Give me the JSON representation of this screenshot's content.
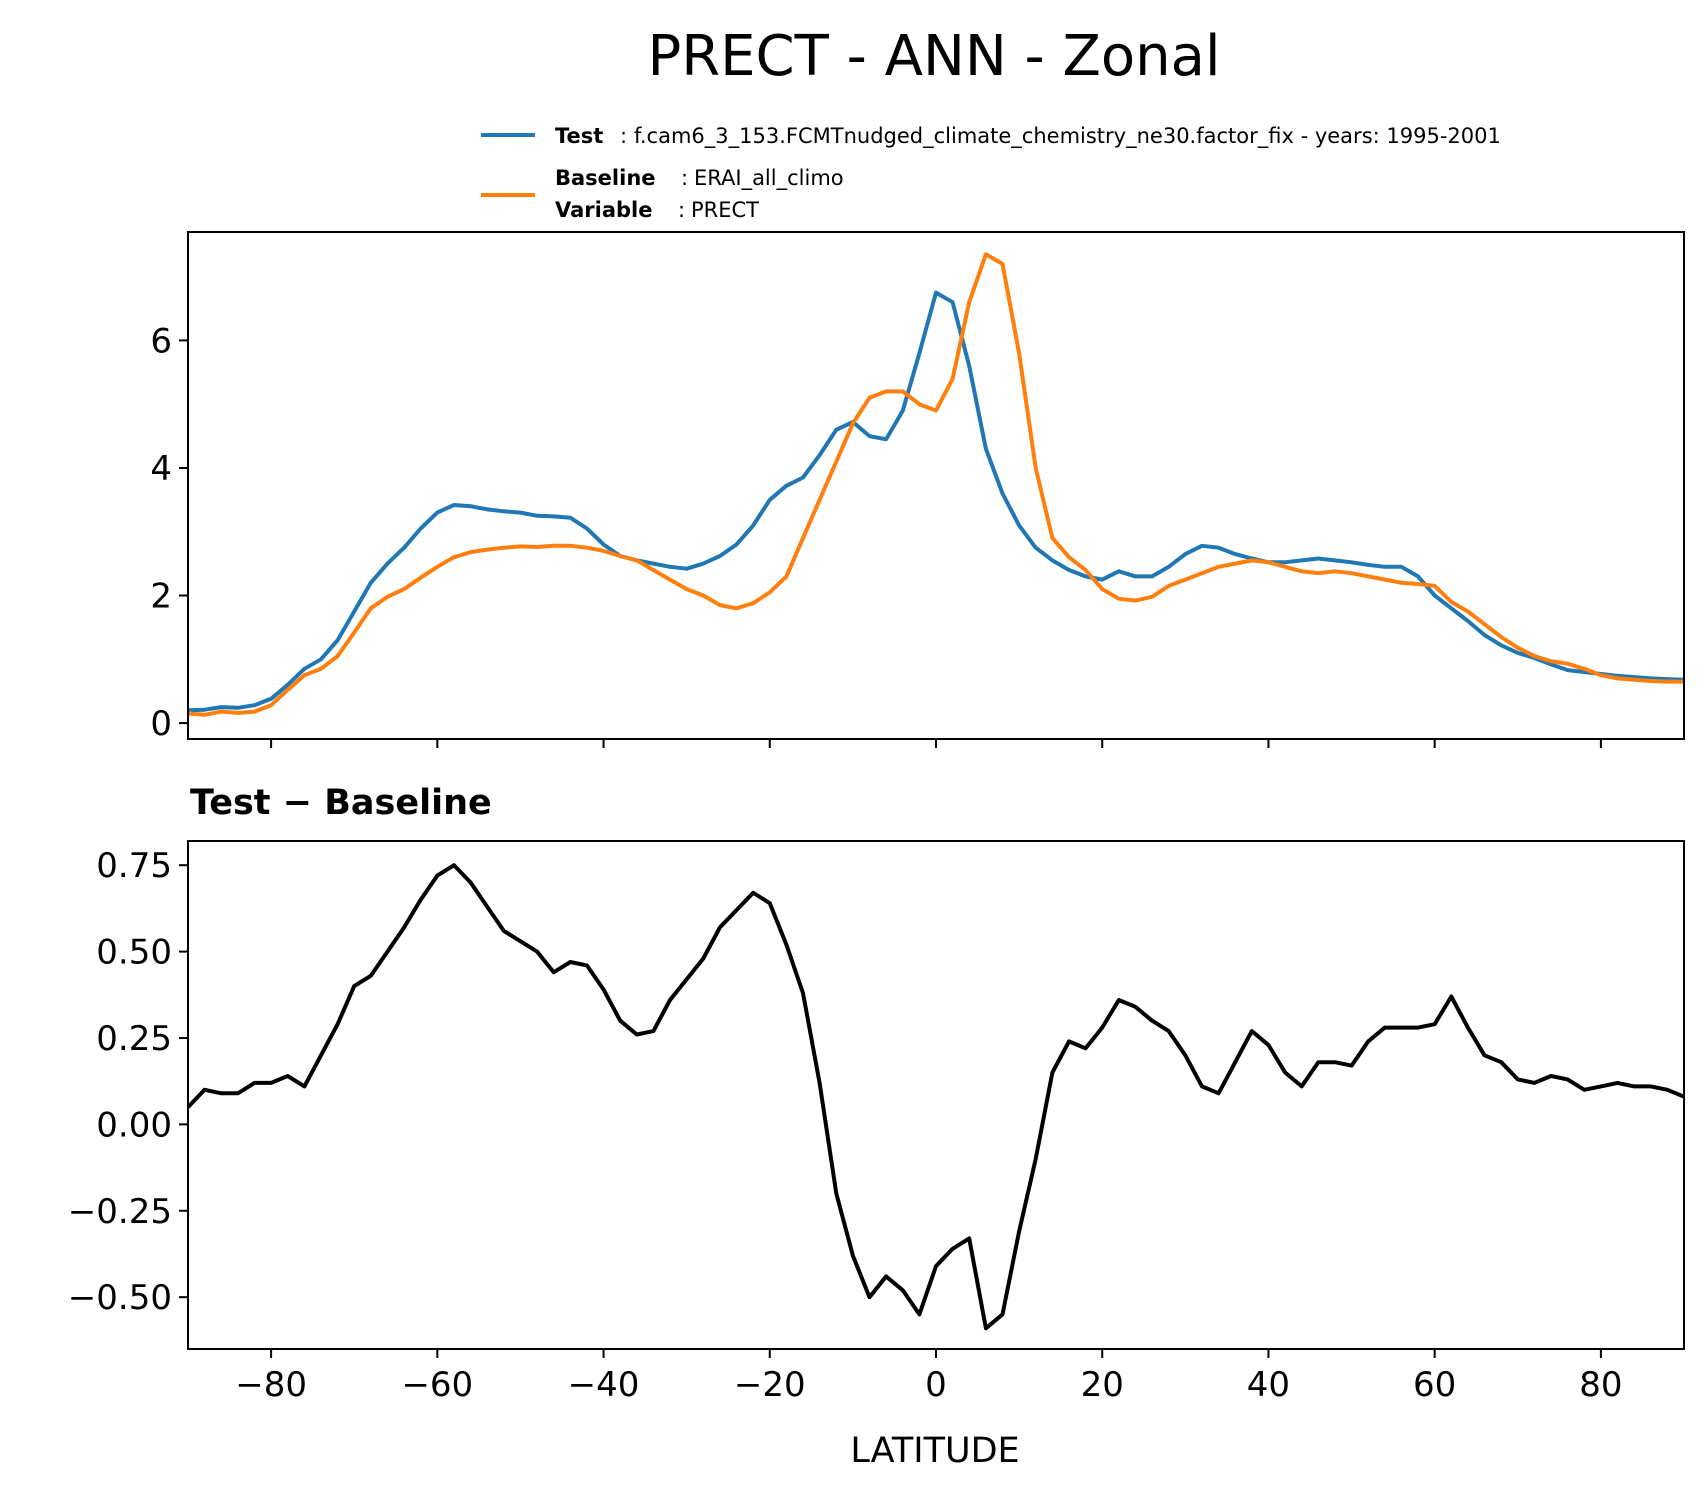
{
  "chart_data": [
    {
      "type": "line",
      "title": "PRECT - ANN - Zonal",
      "legend": {
        "position": "top-right",
        "entries": [
          {
            "key": "Test",
            "sep": ":",
            "text": "f.cam6_3_153.FCMTnudged_climate_chemistry_ne30.factor_fix - years: 1995-2001",
            "color": "#1f77b4"
          },
          {
            "key": "Baseline",
            "sep": ":",
            "text": "ERAI_all_climo",
            "color": "#ff7f0e"
          },
          {
            "key": "Variable",
            "sep": ":",
            "text": "PRECT"
          }
        ]
      },
      "xlim": [
        -90,
        90
      ],
      "ylim": [
        -0.25,
        7.7
      ],
      "xticks": [
        -80,
        -60,
        -40,
        -20,
        0,
        20,
        40,
        60,
        80
      ],
      "yticks": [
        0,
        2,
        4,
        6
      ],
      "ytick_labels": [
        "0",
        "2",
        "4",
        "6"
      ],
      "series": [
        {
          "name": "Test",
          "color": "#1f77b4",
          "x": [
            -90,
            -88,
            -86,
            -84,
            -82,
            -80,
            -78,
            -76,
            -74,
            -72,
            -70,
            -68,
            -66,
            -64,
            -62,
            -60,
            -58,
            -56,
            -54,
            -52,
            -50,
            -48,
            -46,
            -44,
            -42,
            -40,
            -38,
            -36,
            -34,
            -32,
            -30,
            -28,
            -26,
            -24,
            -22,
            -20,
            -18,
            -16,
            -14,
            -12,
            -10,
            -8,
            -6,
            -4,
            -2,
            0,
            2,
            4,
            6,
            8,
            10,
            12,
            14,
            16,
            18,
            20,
            22,
            24,
            26,
            28,
            30,
            32,
            34,
            36,
            38,
            40,
            42,
            44,
            46,
            48,
            50,
            52,
            54,
            56,
            58,
            60,
            62,
            64,
            66,
            68,
            70,
            72,
            74,
            76,
            78,
            80,
            82,
            84,
            86,
            88,
            90
          ],
          "values": [
            0.2,
            0.21,
            0.25,
            0.24,
            0.28,
            0.38,
            0.6,
            0.85,
            1.0,
            1.3,
            1.75,
            2.2,
            2.5,
            2.75,
            3.05,
            3.3,
            3.42,
            3.4,
            3.35,
            3.32,
            3.3,
            3.25,
            3.24,
            3.22,
            3.05,
            2.8,
            2.62,
            2.55,
            2.5,
            2.45,
            2.42,
            2.5,
            2.62,
            2.8,
            3.1,
            3.5,
            3.72,
            3.85,
            4.2,
            4.6,
            4.72,
            4.5,
            4.45,
            4.9,
            5.8,
            6.75,
            6.6,
            5.6,
            4.3,
            3.6,
            3.1,
            2.75,
            2.55,
            2.4,
            2.3,
            2.25,
            2.38,
            2.3,
            2.3,
            2.45,
            2.65,
            2.78,
            2.75,
            2.65,
            2.58,
            2.52,
            2.52,
            2.55,
            2.58,
            2.55,
            2.52,
            2.48,
            2.45,
            2.45,
            2.3,
            2.0,
            1.8,
            1.6,
            1.38,
            1.22,
            1.1,
            1.02,
            0.92,
            0.83,
            0.8,
            0.77,
            0.74,
            0.72,
            0.7,
            0.69,
            0.68
          ]
        },
        {
          "name": "Baseline",
          "color": "#ff7f0e",
          "x": [
            -90,
            -88,
            -86,
            -84,
            -82,
            -80,
            -78,
            -76,
            -74,
            -72,
            -70,
            -68,
            -66,
            -64,
            -62,
            -60,
            -58,
            -56,
            -54,
            -52,
            -50,
            -48,
            -46,
            -44,
            -42,
            -40,
            -38,
            -36,
            -34,
            -32,
            -30,
            -28,
            -26,
            -24,
            -22,
            -20,
            -18,
            -16,
            -14,
            -12,
            -10,
            -8,
            -6,
            -4,
            -2,
            0,
            2,
            4,
            6,
            8,
            10,
            12,
            14,
            16,
            18,
            20,
            22,
            24,
            26,
            28,
            30,
            32,
            34,
            36,
            38,
            40,
            42,
            44,
            46,
            48,
            50,
            52,
            54,
            56,
            58,
            60,
            62,
            64,
            66,
            68,
            70,
            72,
            74,
            76,
            78,
            80,
            82,
            84,
            86,
            88,
            90
          ],
          "values": [
            0.15,
            0.13,
            0.18,
            0.16,
            0.18,
            0.28,
            0.52,
            0.75,
            0.85,
            1.05,
            1.42,
            1.8,
            1.98,
            2.1,
            2.28,
            2.45,
            2.6,
            2.68,
            2.72,
            2.75,
            2.77,
            2.76,
            2.78,
            2.78,
            2.75,
            2.7,
            2.62,
            2.55,
            2.4,
            2.25,
            2.1,
            2.0,
            1.85,
            1.8,
            1.88,
            2.05,
            2.3,
            2.9,
            3.5,
            4.1,
            4.7,
            5.1,
            5.2,
            5.2,
            5.0,
            4.9,
            5.4,
            6.6,
            7.35,
            7.2,
            5.8,
            4.0,
            2.9,
            2.6,
            2.4,
            2.1,
            1.95,
            1.92,
            1.98,
            2.15,
            2.25,
            2.35,
            2.45,
            2.5,
            2.55,
            2.52,
            2.45,
            2.38,
            2.35,
            2.38,
            2.35,
            2.3,
            2.25,
            2.2,
            2.18,
            2.15,
            1.9,
            1.75,
            1.55,
            1.35,
            1.18,
            1.05,
            0.97,
            0.93,
            0.85,
            0.75,
            0.7,
            0.68,
            0.66,
            0.65,
            0.65
          ]
        }
      ]
    },
    {
      "type": "line",
      "title": "Test − Baseline",
      "xlabel": "LATITUDE",
      "xlim": [
        -90,
        90
      ],
      "ylim": [
        -0.65,
        0.82
      ],
      "xticks": [
        -80,
        -60,
        -40,
        -20,
        0,
        20,
        40,
        60,
        80
      ],
      "xtick_labels": [
        "−80",
        "−60",
        "−40",
        "−20",
        "0",
        "20",
        "40",
        "60",
        "80"
      ],
      "yticks": [
        0.75,
        0.5,
        0.25,
        0,
        -0.25,
        -0.5
      ],
      "ytick_labels": [
        "0.75",
        "0.50",
        "0.25",
        "0.00",
        "−0.25",
        "−0.50"
      ],
      "series": [
        {
          "name": "Test − Baseline",
          "color": "#000000",
          "x": [
            -90,
            -88,
            -86,
            -84,
            -82,
            -80,
            -78,
            -76,
            -74,
            -72,
            -70,
            -68,
            -66,
            -64,
            -62,
            -60,
            -58,
            -56,
            -54,
            -52,
            -50,
            -48,
            -46,
            -44,
            -42,
            -40,
            -38,
            -36,
            -34,
            -32,
            -30,
            -28,
            -26,
            -24,
            -22,
            -20,
            -18,
            -16,
            -14,
            -12,
            -10,
            -8,
            -6,
            -4,
            -2,
            0,
            2,
            4,
            6,
            8,
            10,
            12,
            14,
            16,
            18,
            20,
            22,
            24,
            26,
            28,
            30,
            32,
            34,
            36,
            38,
            40,
            42,
            44,
            46,
            48,
            50,
            52,
            54,
            56,
            58,
            60,
            62,
            64,
            66,
            68,
            70,
            72,
            74,
            76,
            78,
            80,
            82,
            84,
            86,
            88,
            90
          ],
          "values": [
            0.05,
            0.1,
            0.09,
            0.09,
            0.12,
            0.12,
            0.14,
            0.11,
            0.2,
            0.29,
            0.4,
            0.43,
            0.5,
            0.57,
            0.65,
            0.72,
            0.75,
            0.7,
            0.63,
            0.56,
            0.53,
            0.5,
            0.44,
            0.47,
            0.46,
            0.39,
            0.3,
            0.26,
            0.27,
            0.36,
            0.42,
            0.48,
            0.57,
            0.62,
            0.67,
            0.64,
            0.52,
            0.38,
            0.12,
            -0.2,
            -0.38,
            -0.5,
            -0.44,
            -0.48,
            -0.55,
            -0.41,
            -0.36,
            -0.33,
            -0.59,
            -0.55,
            -0.31,
            -0.1,
            0.15,
            0.24,
            0.22,
            0.28,
            0.36,
            0.34,
            0.3,
            0.27,
            0.2,
            0.11,
            0.09,
            0.18,
            0.27,
            0.23,
            0.15,
            0.11,
            0.18,
            0.18,
            0.17,
            0.24,
            0.28,
            0.28,
            0.28,
            0.29,
            0.37,
            0.28,
            0.2,
            0.18,
            0.13,
            0.12,
            0.14,
            0.13,
            0.1,
            0.11,
            0.12,
            0.11,
            0.11,
            0.1,
            0.08
          ]
        }
      ]
    }
  ]
}
